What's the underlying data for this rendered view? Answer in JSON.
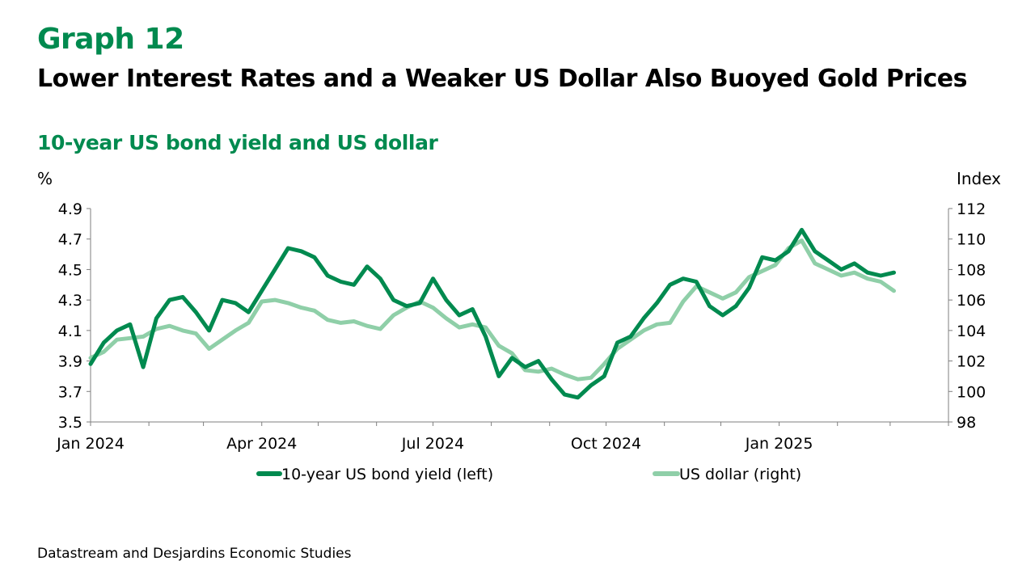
{
  "header": {
    "graph_number": "Graph 12",
    "title": "Lower Interest Rates and a Weaker US Dollar Also Buoyed Gold Prices",
    "subtitle": "10-year US bond yield and US dollar"
  },
  "source": "Datastream and Desjardins Economic Studies",
  "chart_data": {
    "type": "line",
    "left_axis_label": "%",
    "right_axis_label": "Index",
    "ylim_left": [
      3.5,
      4.9
    ],
    "ylim_right": [
      98,
      112
    ],
    "yticks_left": [
      "4.9",
      "4.7",
      "4.5",
      "4.3",
      "4.1",
      "3.9",
      "3.7",
      "3.5"
    ],
    "yticks_right": [
      "112",
      "110",
      "108",
      "106",
      "104",
      "102",
      "100",
      "98"
    ],
    "x_tick_labels": [
      "Jan 2024",
      "Apr 2024",
      "Jul 2024",
      "Oct 2024",
      "Jan 2025"
    ],
    "x_tick_dates": [
      "2024-01-01",
      "2024-04-01",
      "2024-07-01",
      "2024-10-01",
      "2025-01-01"
    ],
    "xlim": [
      "2024-01-01",
      "2025-04-01"
    ],
    "grid": false,
    "legend_position": "bottom",
    "series": [
      {
        "name": "10-year US bond yield (left)",
        "axis": "left",
        "color": "#008a4f",
        "x": [
          "2024-01-01",
          "2024-01-08",
          "2024-01-15",
          "2024-01-22",
          "2024-01-29",
          "2024-02-05",
          "2024-02-12",
          "2024-02-19",
          "2024-02-26",
          "2024-03-04",
          "2024-03-11",
          "2024-03-18",
          "2024-03-25",
          "2024-04-01",
          "2024-04-08",
          "2024-04-15",
          "2024-04-22",
          "2024-04-29",
          "2024-05-06",
          "2024-05-13",
          "2024-05-20",
          "2024-05-27",
          "2024-06-03",
          "2024-06-10",
          "2024-06-17",
          "2024-06-24",
          "2024-07-01",
          "2024-07-08",
          "2024-07-15",
          "2024-07-22",
          "2024-07-29",
          "2024-08-05",
          "2024-08-12",
          "2024-08-19",
          "2024-08-26",
          "2024-09-02",
          "2024-09-09",
          "2024-09-16",
          "2024-09-23",
          "2024-09-30",
          "2024-10-07",
          "2024-10-14",
          "2024-10-21",
          "2024-10-28",
          "2024-11-04",
          "2024-11-11",
          "2024-11-18",
          "2024-11-25",
          "2024-12-02",
          "2024-12-09",
          "2024-12-16",
          "2024-12-23",
          "2024-12-30",
          "2025-01-06",
          "2025-01-13",
          "2025-01-20",
          "2025-01-27",
          "2025-02-03",
          "2025-02-10",
          "2025-02-17",
          "2025-02-24",
          "2025-03-03"
        ],
        "values": [
          3.88,
          4.02,
          4.1,
          4.14,
          3.86,
          4.18,
          4.3,
          4.32,
          4.22,
          4.1,
          4.3,
          4.28,
          4.22,
          4.36,
          4.5,
          4.64,
          4.62,
          4.58,
          4.46,
          4.42,
          4.4,
          4.52,
          4.44,
          4.3,
          4.26,
          4.28,
          4.44,
          4.3,
          4.2,
          4.24,
          4.06,
          3.8,
          3.92,
          3.86,
          3.9,
          3.78,
          3.68,
          3.66,
          3.74,
          3.8,
          4.02,
          4.06,
          4.18,
          4.28,
          4.4,
          4.44,
          4.42,
          4.26,
          4.2,
          4.26,
          4.38,
          4.58,
          4.56,
          4.62,
          4.76,
          4.62,
          4.56,
          4.5,
          4.54,
          4.48,
          4.46,
          4.48
        ]
      },
      {
        "name": "US dollar (right)",
        "axis": "right",
        "color": "#8fcfa8",
        "x": [
          "2024-01-01",
          "2024-01-08",
          "2024-01-15",
          "2024-01-22",
          "2024-01-29",
          "2024-02-05",
          "2024-02-12",
          "2024-02-19",
          "2024-02-26",
          "2024-03-04",
          "2024-03-11",
          "2024-03-18",
          "2024-03-25",
          "2024-04-01",
          "2024-04-08",
          "2024-04-15",
          "2024-04-22",
          "2024-04-29",
          "2024-05-06",
          "2024-05-13",
          "2024-05-20",
          "2024-05-27",
          "2024-06-03",
          "2024-06-10",
          "2024-06-17",
          "2024-06-24",
          "2024-07-01",
          "2024-07-08",
          "2024-07-15",
          "2024-07-22",
          "2024-07-29",
          "2024-08-05",
          "2024-08-12",
          "2024-08-19",
          "2024-08-26",
          "2024-09-02",
          "2024-09-09",
          "2024-09-16",
          "2024-09-23",
          "2024-09-30",
          "2024-10-07",
          "2024-10-14",
          "2024-10-21",
          "2024-10-28",
          "2024-11-04",
          "2024-11-11",
          "2024-11-18",
          "2024-11-25",
          "2024-12-02",
          "2024-12-09",
          "2024-12-16",
          "2024-12-23",
          "2024-12-30",
          "2025-01-06",
          "2025-01-13",
          "2025-01-20",
          "2025-01-27",
          "2025-02-03",
          "2025-02-10",
          "2025-02-17",
          "2025-02-24",
          "2025-03-03"
        ],
        "values": [
          102.2,
          102.6,
          103.4,
          103.5,
          103.6,
          104.1,
          104.3,
          104.0,
          103.8,
          102.8,
          103.4,
          104.0,
          104.5,
          105.9,
          106.0,
          105.8,
          105.5,
          105.3,
          104.7,
          104.5,
          104.6,
          104.3,
          104.1,
          105.0,
          105.5,
          105.9,
          105.5,
          104.8,
          104.2,
          104.4,
          104.2,
          103.0,
          102.5,
          101.4,
          101.3,
          101.5,
          101.1,
          100.8,
          100.9,
          101.8,
          102.8,
          103.4,
          104.0,
          104.4,
          104.5,
          105.9,
          106.9,
          106.5,
          106.1,
          106.5,
          107.5,
          107.9,
          108.3,
          109.4,
          109.9,
          108.4,
          108.0,
          107.6,
          107.8,
          107.4,
          107.2,
          106.6
        ]
      }
    ]
  }
}
